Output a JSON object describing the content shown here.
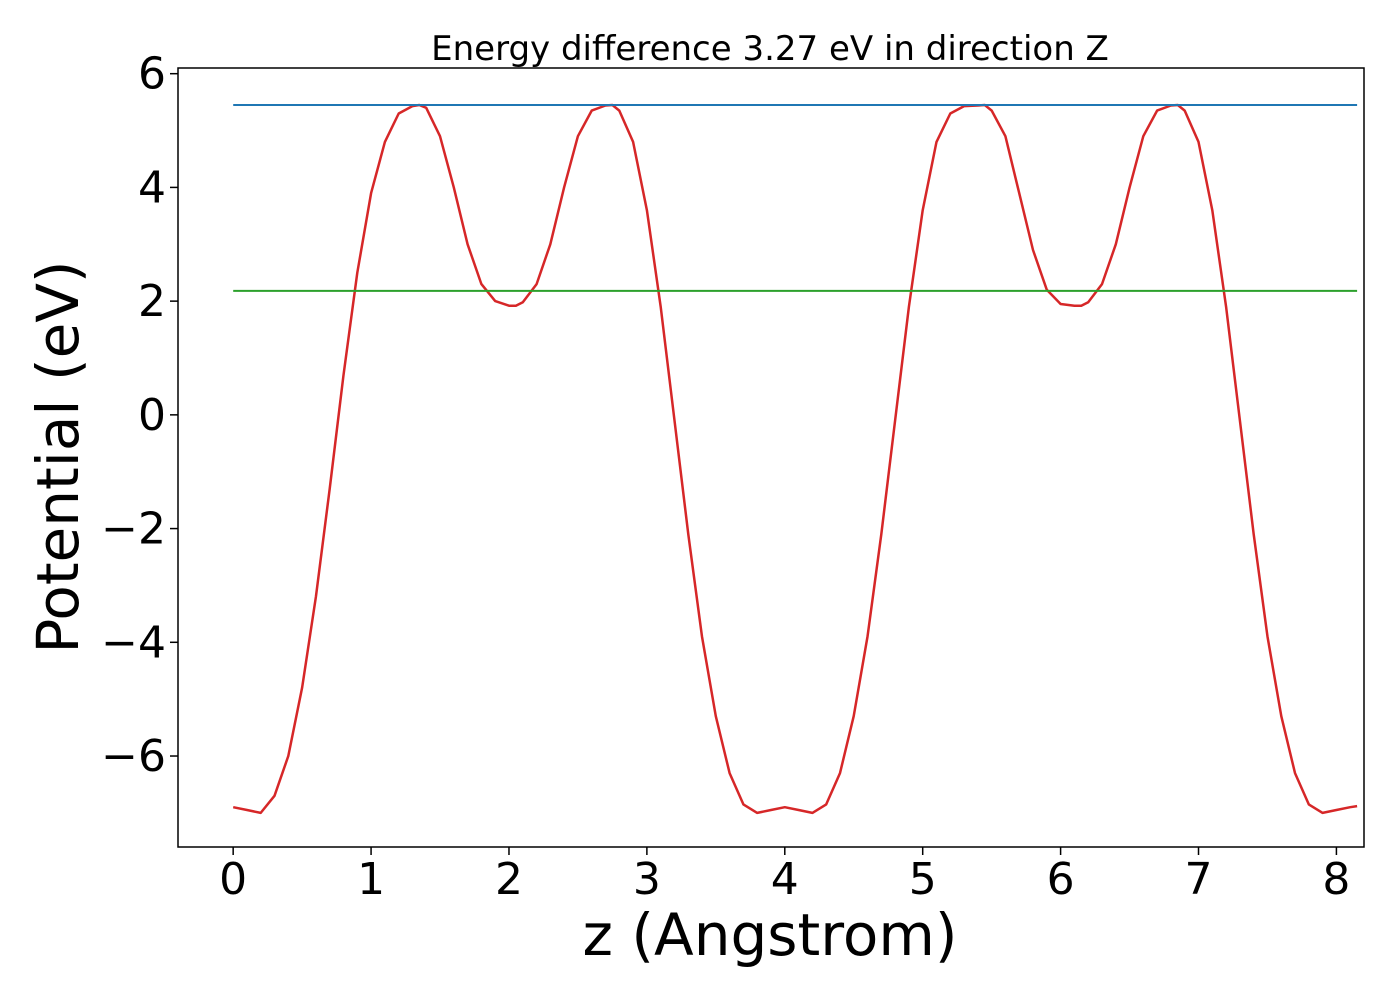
{
  "chart_data": {
    "type": "line",
    "title": "Energy difference 3.27 eV in direction Z",
    "xlabel": "z (Angstrom)",
    "ylabel": "Potential (eV)",
    "xlim": [
      -0.4,
      8.2
    ],
    "ylim": [
      -7.6,
      6.1
    ],
    "x_ticks": [
      0,
      1,
      2,
      3,
      4,
      5,
      6,
      7,
      8
    ],
    "x_tick_labels": [
      "0",
      "1",
      "2",
      "3",
      "4",
      "5",
      "6",
      "7",
      "8"
    ],
    "y_ticks": [
      -6,
      -4,
      -2,
      0,
      2,
      4,
      6
    ],
    "y_tick_labels": [
      "−6",
      "−4",
      "−2",
      "0",
      "2",
      "4",
      "6"
    ],
    "grid": false,
    "series": [
      {
        "color": "#d62728",
        "x": [
          0.0,
          0.1,
          0.2,
          0.3,
          0.4,
          0.5,
          0.6,
          0.7,
          0.8,
          0.9,
          1.0,
          1.1,
          1.2,
          1.3,
          1.35,
          1.4,
          1.5,
          1.6,
          1.7,
          1.8,
          1.9,
          2.0,
          2.05,
          2.1,
          2.2,
          2.3,
          2.4,
          2.5,
          2.6,
          2.7,
          2.75,
          2.8,
          2.9,
          3.0,
          3.1,
          3.2,
          3.3,
          3.4,
          3.5,
          3.6,
          3.7,
          3.8,
          3.9,
          4.0,
          4.1,
          4.2,
          4.3,
          4.4,
          4.5,
          4.6,
          4.7,
          4.8,
          4.9,
          5.0,
          5.1,
          5.2,
          5.3,
          5.4,
          5.45,
          5.5,
          5.6,
          5.7,
          5.8,
          5.9,
          6.0,
          6.1,
          6.15,
          6.2,
          6.3,
          6.4,
          6.5,
          6.6,
          6.7,
          6.8,
          6.85,
          6.9,
          7.0,
          7.1,
          7.2,
          7.3,
          7.4,
          7.5,
          7.6,
          7.7,
          7.8,
          7.9,
          8.0,
          8.1,
          8.15
        ],
        "y": [
          -6.9,
          -6.95,
          -7.0,
          -6.7,
          -6.0,
          -4.8,
          -3.2,
          -1.3,
          0.7,
          2.5,
          3.9,
          4.8,
          5.3,
          5.43,
          5.45,
          5.4,
          4.9,
          4.0,
          3.0,
          2.3,
          2.0,
          1.92,
          1.92,
          1.98,
          2.3,
          3.0,
          4.0,
          4.9,
          5.35,
          5.44,
          5.45,
          5.35,
          4.8,
          3.6,
          1.9,
          -0.1,
          -2.1,
          -3.9,
          -5.3,
          -6.3,
          -6.85,
          -7.0,
          -6.95,
          -6.9,
          -6.95,
          -7.0,
          -6.85,
          -6.3,
          -5.3,
          -3.9,
          -2.1,
          -0.1,
          1.9,
          3.6,
          4.8,
          5.3,
          5.43,
          5.44,
          5.45,
          5.35,
          4.9,
          3.9,
          2.9,
          2.2,
          1.95,
          1.92,
          1.92,
          1.98,
          2.3,
          3.0,
          4.0,
          4.9,
          5.35,
          5.44,
          5.45,
          5.35,
          4.8,
          3.6,
          1.9,
          -0.1,
          -2.1,
          -3.9,
          -5.3,
          -6.3,
          -6.85,
          -7.0,
          -6.95,
          -6.9,
          -6.88
        ]
      },
      {
        "color": "#1f77b4",
        "x": [
          0.0,
          8.15
        ],
        "y": [
          5.45,
          5.45
        ]
      },
      {
        "color": "#2ca02c",
        "x": [
          0.0,
          8.15
        ],
        "y": [
          2.18,
          2.18
        ]
      }
    ]
  }
}
